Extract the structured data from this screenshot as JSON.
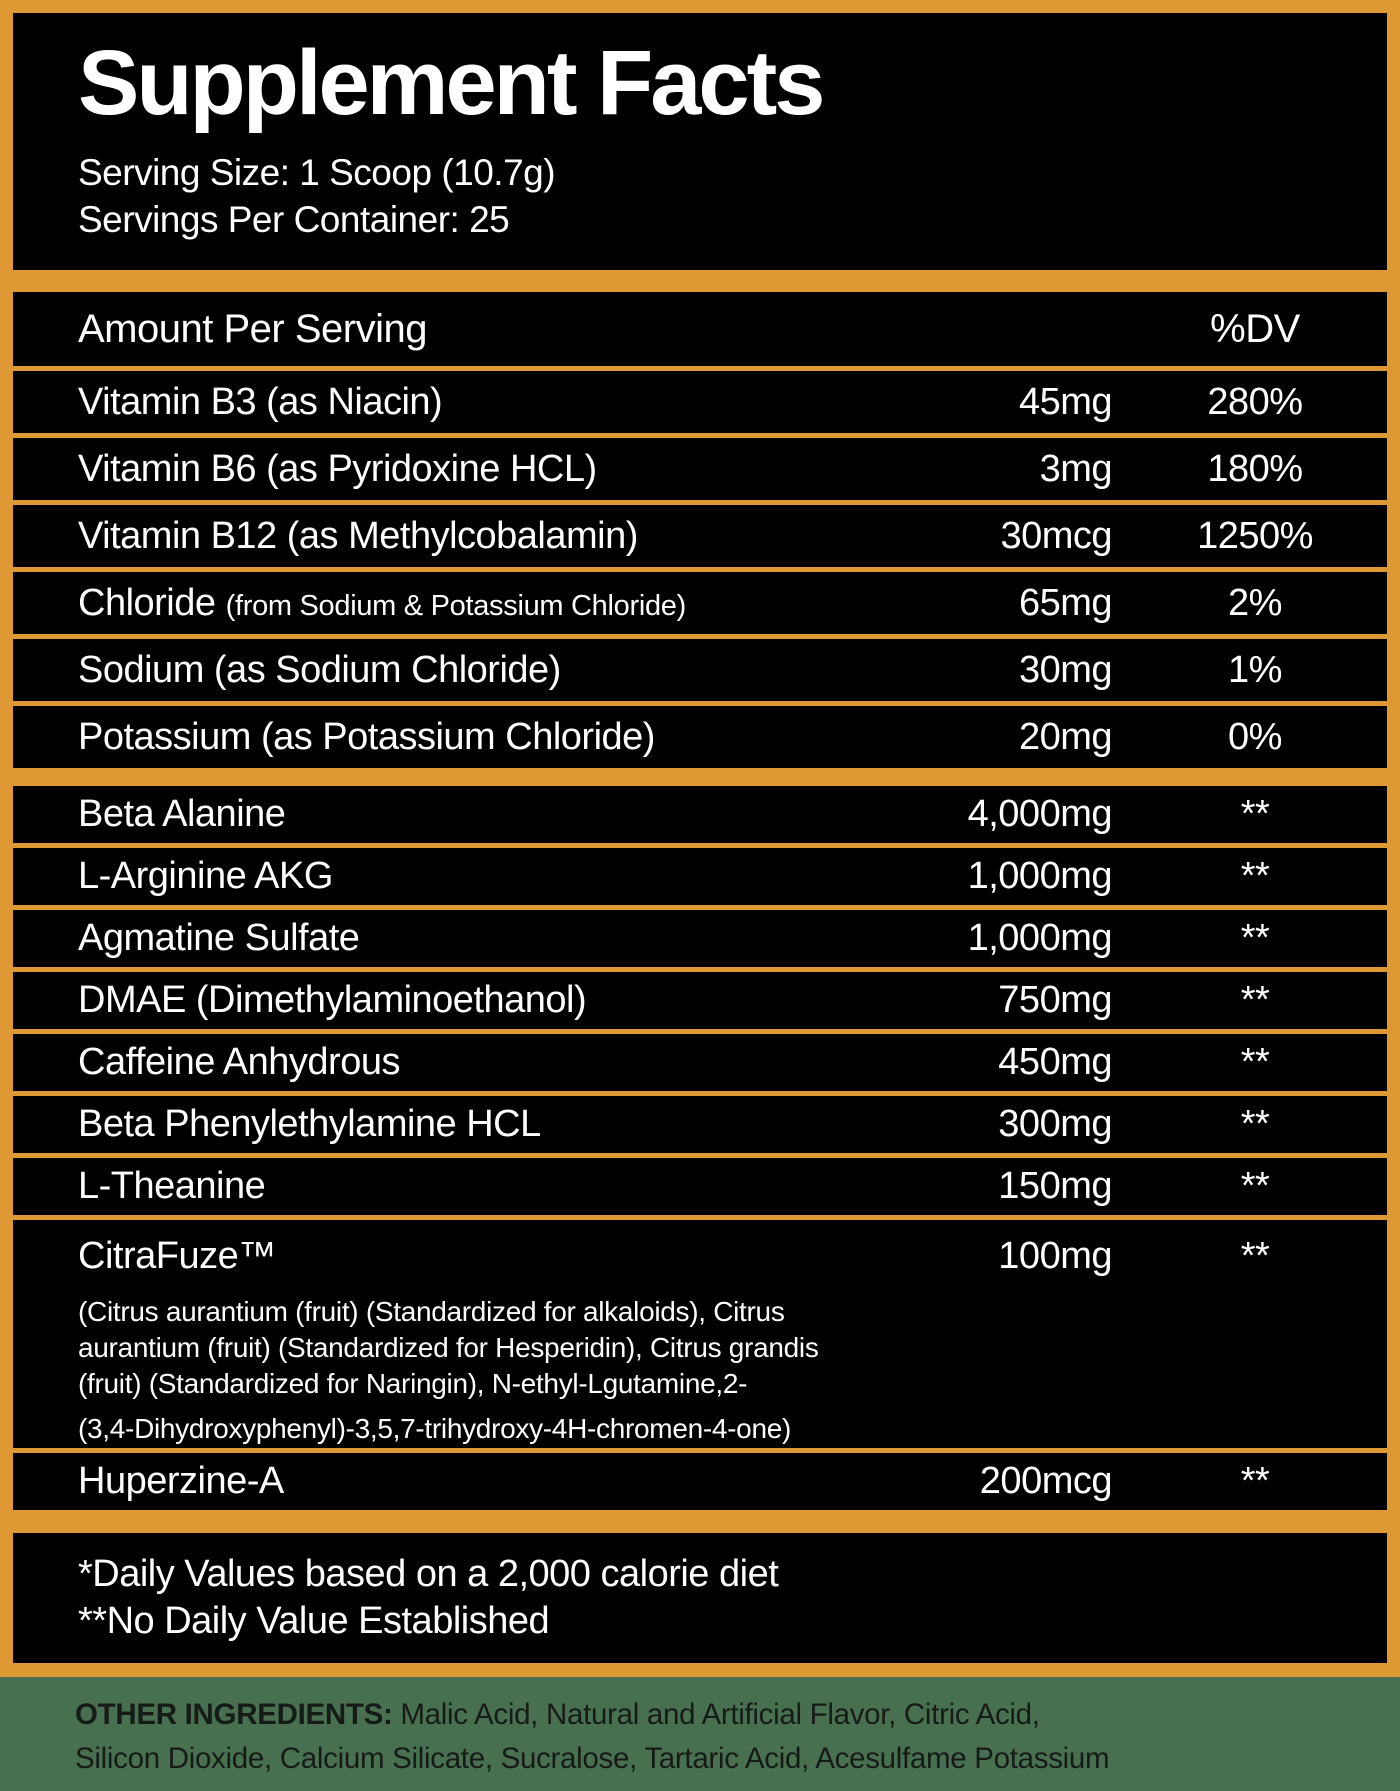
{
  "colors": {
    "border_orange": "#DF9934",
    "panel_black": "#000000",
    "panel_text": "#FFFFFF",
    "bottom_background_green": "#487050",
    "bottom_text": "#151B16"
  },
  "header": {
    "title": "Supplement Facts",
    "serving_size": "Serving Size: 1 Scoop (10.7g)",
    "servings_per_container": "Servings Per Container: 25"
  },
  "table": {
    "amount_header": "Amount Per Serving",
    "dv_header": "%DV",
    "rows": [
      {
        "label": "Vitamin B3 (as Niacin)",
        "amount": "45mg",
        "dv": "280%"
      },
      {
        "label": "Vitamin B6 (as Pyridoxine HCL)",
        "amount": "3mg",
        "dv": "180%"
      },
      {
        "label": "Vitamin B12 (as Methylcobalamin)",
        "amount": "30mcg",
        "dv": "1250%"
      },
      {
        "label": "Chloride",
        "label_small": "(from Sodium & Potassium Chloride)",
        "amount": "65mg",
        "dv": "2%"
      },
      {
        "label": "Sodium (as Sodium Chloride)",
        "amount": "30mg",
        "dv": "1%"
      },
      {
        "label": "Potassium (as Potassium Chloride)",
        "amount": "20mg",
        "dv": "0%"
      },
      {
        "label": "Beta Alanine",
        "amount": "4,000mg",
        "dv": "**"
      },
      {
        "label": "L-Arginine AKG",
        "amount": "1,000mg",
        "dv": "**"
      },
      {
        "label": "Agmatine Sulfate",
        "amount": "1,000mg",
        "dv": "**"
      },
      {
        "label": "DMAE (Dimethylaminoethanol)",
        "amount": "750mg",
        "dv": "**"
      },
      {
        "label": "Caffeine Anhydrous",
        "amount": "450mg",
        "dv": "**"
      },
      {
        "label": "Beta Phenylethylamine HCL",
        "amount": "300mg",
        "dv": "**"
      },
      {
        "label": "L-Theanine",
        "amount": "150mg",
        "dv": "**"
      },
      {
        "label": "Huperzine-A",
        "amount": "200mcg",
        "dv": "**"
      }
    ],
    "citrafuze": {
      "label": "CitraFuze™",
      "amount": "100mg",
      "dv": "**",
      "description_lines": [
        "(Citrus aurantium (fruit) (Standardized for alkaloids), Citrus",
        "aurantium (fruit) (Standardized for Hesperidin), Citrus grandis",
        "(fruit) (Standardized for Naringin), N-ethyl-Lgutamine,2-",
        "(3,4-Dihydroxyphenyl)-3,5,7-trihydroxy-4H-chromen-4-one)"
      ]
    }
  },
  "footnotes": {
    "line1": "*Daily Values based on a 2,000 calorie diet",
    "line2": "**No Daily Value Established"
  },
  "other_ingredients": {
    "heading": "OTHER INGREDIENTS:",
    "line1_rest": " Malic Acid, Natural and Artificial Flavor, Citric  Acid,",
    "line2": "Silicon Dioxide, Calcium Silicate, Sucralose, Tartaric Acid, Acesulfame Potassium"
  }
}
